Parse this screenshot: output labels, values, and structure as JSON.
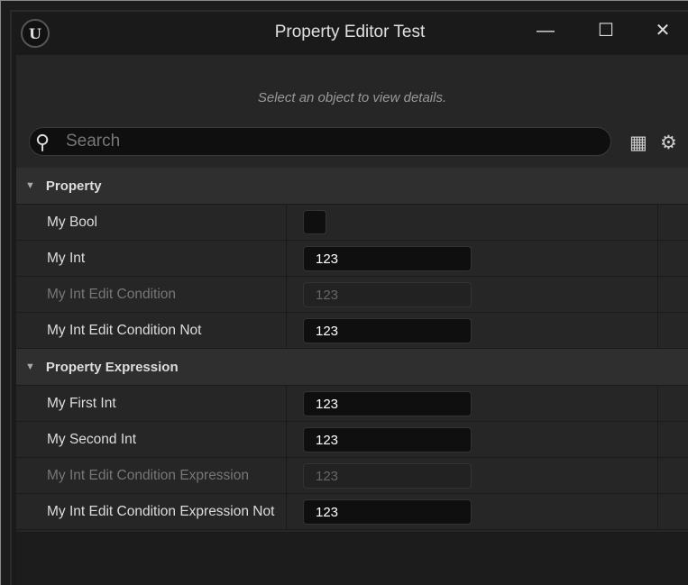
{
  "window": {
    "title": "Property Editor Test",
    "logo": "UE",
    "minimize": "—",
    "maximize": "☐",
    "close": "✕"
  },
  "hint": "Select an object to view details.",
  "search": {
    "placeholder": "Search",
    "value": ""
  },
  "toolbar": {
    "table_icon": "table-icon",
    "settings_icon": "gear-icon"
  },
  "categories": [
    {
      "label": "Property",
      "rows": [
        {
          "name": "My Bool",
          "type": "bool",
          "value": false,
          "enabled": true
        },
        {
          "name": "My Int",
          "value": "123",
          "enabled": true
        },
        {
          "name": "My Int Edit Condition",
          "value": "123",
          "enabled": false
        },
        {
          "name": "My Int Edit Condition Not",
          "value": "123",
          "enabled": true
        }
      ]
    },
    {
      "label": "Property Expression",
      "rows": [
        {
          "name": "My First Int",
          "value": "123",
          "enabled": true
        },
        {
          "name": "My Second Int",
          "value": "123",
          "enabled": true
        },
        {
          "name": "My Int Edit Condition Expression",
          "value": "123",
          "enabled": false
        },
        {
          "name": "My Int Edit Condition Expression Not",
          "value": "123",
          "enabled": true
        }
      ]
    }
  ]
}
